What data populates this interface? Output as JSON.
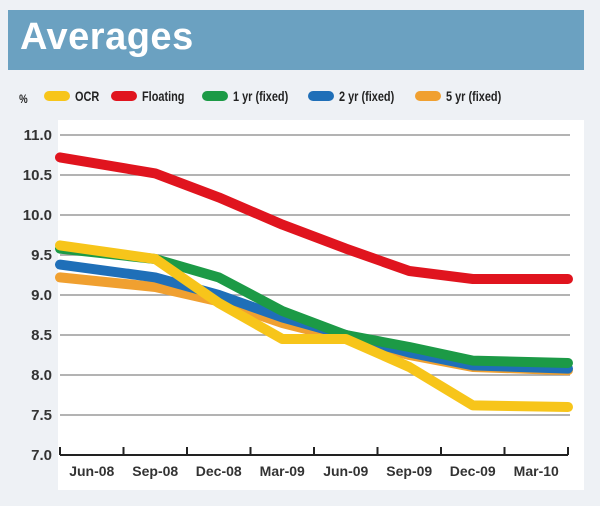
{
  "header": {
    "title": "Averages"
  },
  "chart_data": {
    "type": "line",
    "title": "Averages",
    "xlabel": "",
    "ylabel": "%",
    "ylim": [
      7.0,
      11.0
    ],
    "yticks": [
      "11.0",
      "10.5",
      "10.0",
      "9.5",
      "9.0",
      "8.5",
      "8.0",
      "7.5",
      "7.0"
    ],
    "ytick_values": [
      11.0,
      10.5,
      10.0,
      9.5,
      9.0,
      8.5,
      8.0,
      7.5,
      7.0
    ],
    "categories": [
      "Jun-08",
      "Sep-08",
      "Dec-08",
      "Mar-09",
      "Jun-09",
      "Sep-09",
      "Dec-09",
      "Mar-10"
    ],
    "grid": true,
    "legend_position": "top",
    "series": [
      {
        "name": "OCR",
        "color": "#f7c51a",
        "x": [
          0,
          1,
          2,
          3,
          4,
          5,
          6,
          7
        ],
        "values": [
          9.62,
          9.45,
          8.9,
          8.45,
          8.45,
          8.1,
          7.62,
          7.6
        ]
      },
      {
        "name": "Floating",
        "color": "#e0141e",
        "x": [
          0,
          1,
          2,
          3,
          4,
          5,
          6,
          7
        ],
        "values": [
          10.72,
          10.52,
          10.22,
          9.88,
          9.58,
          9.3,
          9.2,
          9.2
        ]
      },
      {
        "name": "1 yr (fixed)",
        "color": "#1c9a46",
        "x": [
          0,
          1,
          2,
          3,
          4,
          5,
          6,
          7
        ],
        "values": [
          9.58,
          9.45,
          9.22,
          8.8,
          8.5,
          8.35,
          8.18,
          8.15
        ]
      },
      {
        "name": "2 yr (fixed)",
        "color": "#1f6fb8",
        "x": [
          0,
          1,
          2,
          3,
          4,
          5,
          6,
          7
        ],
        "values": [
          9.38,
          9.22,
          9.0,
          8.72,
          8.5,
          8.28,
          8.12,
          8.08
        ]
      },
      {
        "name": "5 yr (fixed)",
        "color": "#f0a030",
        "x": [
          0,
          1,
          2,
          3,
          4,
          5,
          6,
          7
        ],
        "values": [
          9.22,
          9.1,
          8.92,
          8.65,
          8.45,
          8.25,
          8.1,
          8.06
        ]
      }
    ]
  }
}
